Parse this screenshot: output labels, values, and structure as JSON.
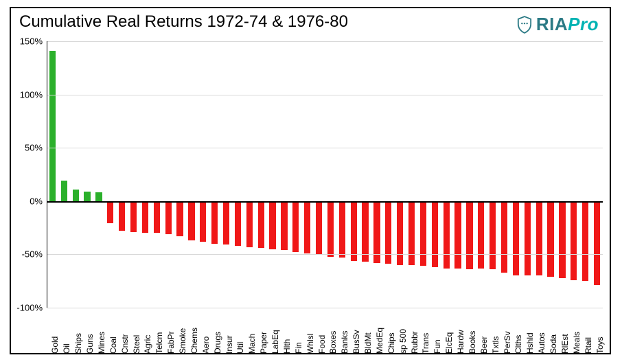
{
  "title": "Cumulative Real Returns 1972-74 & 1976-80",
  "logo": {
    "ria": "RIA",
    "pro": "Pro",
    "shield_color": "#2b7a85"
  },
  "chart": {
    "type": "bar",
    "title_fontsize": 24,
    "label_fontsize": 12,
    "ylim": [
      -100,
      150
    ],
    "yticks": [
      -100,
      -50,
      0,
      50,
      100,
      150
    ],
    "ytick_format": "percent",
    "background_color": "#ffffff",
    "grid_color": "#d9d9d9",
    "axis_color": "#000000",
    "positive_color": "#2bb02b",
    "negative_color": "#f01818",
    "bar_width_ratio": 0.55,
    "categories": [
      "Gold",
      "Oil",
      "Ships",
      "Guns",
      "Mines",
      "Coal",
      "Cnstr",
      "Steel",
      "Agric",
      "Telcm",
      "FabPr",
      "Smoke",
      "Chems",
      "Aero",
      "Drugs",
      "Insur",
      "Util",
      "Mach",
      "Paper",
      "LabEq",
      "Hlth",
      "Fin",
      "Whlsl",
      "Food",
      "Boxes",
      "Banks",
      "BusSv",
      "BldMt",
      "MedEq",
      "Chips",
      "sp 500",
      "Rubbr",
      "Trans",
      "Fun",
      "ElcEq",
      "Hardw",
      "Books",
      "Beer",
      "Txtls",
      "PerSv",
      "Clths",
      "Hshld",
      "Autos",
      "Soda",
      "RlEst",
      "Meals",
      "Rtail",
      "Toys"
    ],
    "values": [
      141,
      19,
      11,
      9,
      8,
      -21,
      -28,
      -29,
      -30,
      -30,
      -31,
      -33,
      -37,
      -38,
      -40,
      -41,
      -42,
      -43,
      -44,
      -45,
      -46,
      -48,
      -49,
      -50,
      -52,
      -53,
      -56,
      -57,
      -58,
      -59,
      -60,
      -60,
      -61,
      -62,
      -63,
      -63,
      -64,
      -63,
      -64,
      -67,
      -70,
      -70,
      -70,
      -71,
      -72,
      -74,
      -75,
      -79
    ]
  }
}
